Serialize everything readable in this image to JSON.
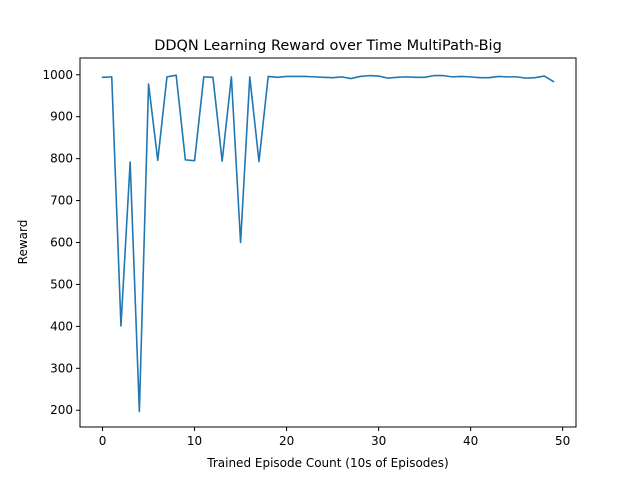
{
  "chart_data": {
    "type": "line",
    "title": "DDQN Learning Reward over Time MultiPath-Big",
    "xlabel": "Trained Episode Count (10s of Episodes)",
    "ylabel": "Reward",
    "xlim": [
      -2.45,
      51.45
    ],
    "ylim": [
      160,
      1040
    ],
    "xticks": [
      0,
      10,
      20,
      30,
      40,
      50
    ],
    "yticks": [
      200,
      300,
      400,
      500,
      600,
      700,
      800,
      900,
      1000
    ],
    "grid": false,
    "series": [
      {
        "color": "#1f77b4",
        "x": [
          0,
          1,
          2,
          3,
          4,
          5,
          6,
          7,
          8,
          9,
          10,
          11,
          12,
          13,
          14,
          15,
          16,
          17,
          18,
          19,
          20,
          21,
          22,
          23,
          24,
          25,
          26,
          27,
          28,
          29,
          30,
          31,
          32,
          33,
          34,
          35,
          36,
          37,
          38,
          39,
          40,
          41,
          42,
          43,
          44,
          45,
          46,
          47,
          48,
          49
        ],
        "y": [
          994,
          995,
          401,
          792,
          197,
          978,
          796,
          995,
          999,
          797,
          795,
          995,
          994,
          794,
          995,
          600,
          995,
          793,
          996,
          994,
          996,
          996,
          996,
          995,
          994,
          993,
          995,
          991,
          996,
          998,
          997,
          992,
          994,
          995,
          994,
          994,
          998,
          998,
          995,
          996,
          995,
          993,
          993,
          996,
          995,
          995,
          992,
          993,
          997,
          984
        ]
      }
    ]
  }
}
